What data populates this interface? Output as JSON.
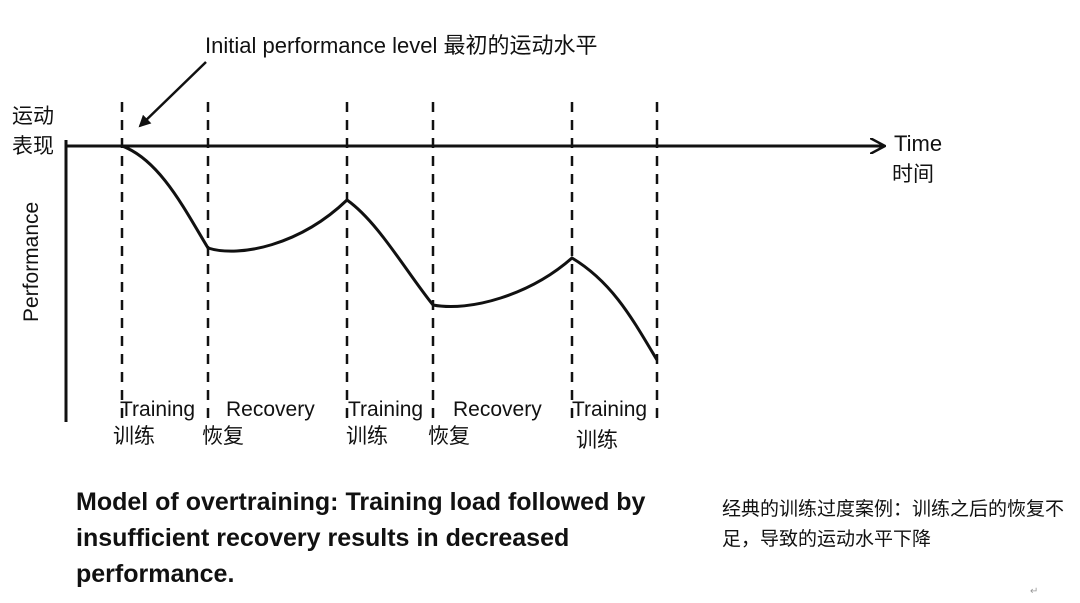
{
  "annotation": {
    "text": "Initial performance level 最初的运动水平"
  },
  "y_axis": {
    "label_cn_line1": "运动",
    "label_cn_line2": "表现",
    "label_en": "Performance"
  },
  "x_axis": {
    "label_en": "Time",
    "label_cn": "时间"
  },
  "phases": [
    {
      "en": "Training",
      "cn": "训练"
    },
    {
      "en": "Recovery",
      "cn": "恢复"
    },
    {
      "en": "Training",
      "cn": "训练"
    },
    {
      "en": "Recovery",
      "cn": "恢复"
    },
    {
      "en": "Training",
      "cn": "训练"
    }
  ],
  "caption": {
    "en": "Model of overtraining: Training load followed by insufficient recovery results in decreased performance.",
    "cn": "经典的训练过度案例：训练之后的恢复不足，导致的运动水平下降"
  },
  "corner_mark": "↵",
  "colors": {
    "ink": "#111111"
  }
}
